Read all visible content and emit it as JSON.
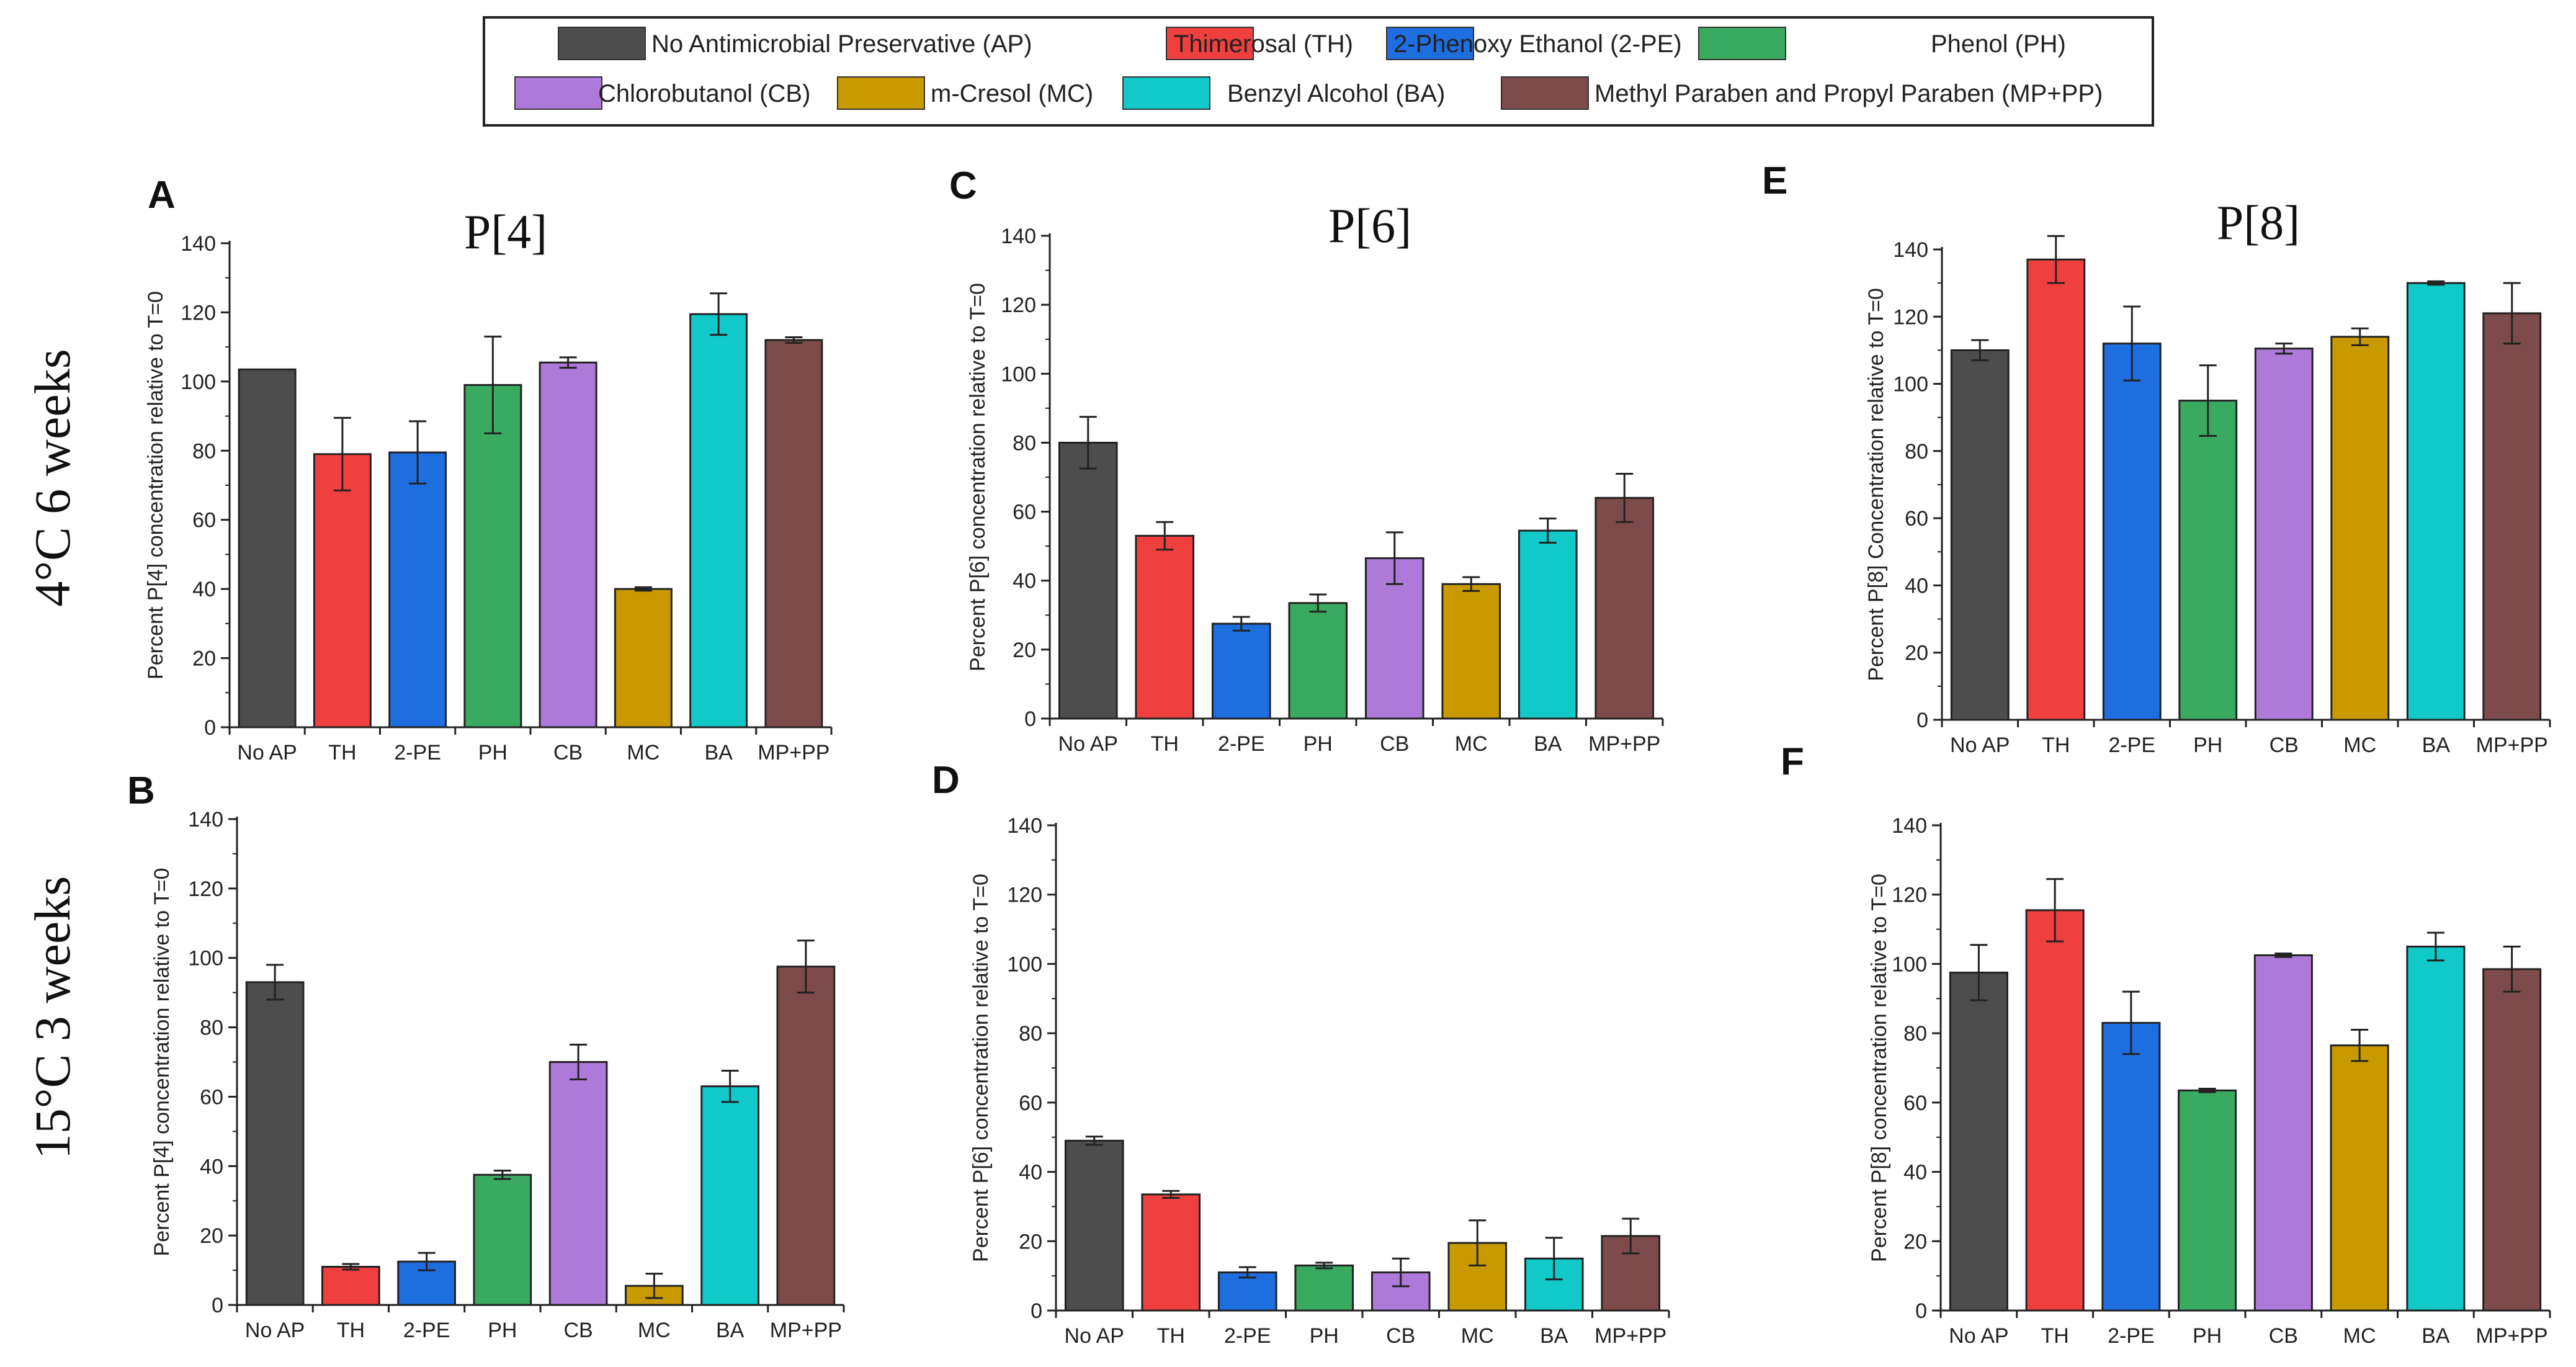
{
  "legend": {
    "items": [
      {
        "label": "No Antimicrobial Preservative (AP)",
        "color": "#4d4d4d"
      },
      {
        "label": "Thimerosal (TH)",
        "color": "#ef3f3f"
      },
      {
        "label": "2-Phenoxy Ethanol (2-PE)",
        "color": "#1e6ee0"
      },
      {
        "label": "Phenol (PH)",
        "color": "#3aaa61"
      },
      {
        "label": "Chlorobutanol (CB)",
        "color": "#ae7ad9"
      },
      {
        "label": "m-Cresol (MC)",
        "color": "#c99a00"
      },
      {
        "label": "Benzyl Alcohol (BA)",
        "color": "#12c9c9"
      },
      {
        "label": "Methyl Paraben and Propyl Paraben (MP+PP)",
        "color": "#7d4b4b"
      }
    ]
  },
  "row_labels": [
    "4°C 6 weeks",
    "15°C 3 weeks"
  ],
  "chart_data": [
    {
      "type": "bar",
      "panel": "A",
      "title": "P[4]",
      "ylabel": "Percent P[4] concentration relative to T=0",
      "xlabel": "",
      "categories": [
        "No AP",
        "TH",
        "2-PE",
        "PH",
        "CB",
        "MC",
        "BA",
        "MP+PP"
      ],
      "values": [
        103.5,
        79,
        79.5,
        99,
        105.5,
        40,
        119.5,
        112
      ],
      "errors": [
        0,
        10.5,
        9,
        14,
        1.5,
        0.5,
        6,
        0.8
      ],
      "ylim": [
        0,
        140
      ],
      "yticks": [
        "0",
        "20",
        "40",
        "60",
        "80",
        "100",
        "120",
        "140"
      ]
    },
    {
      "type": "bar",
      "panel": "B",
      "title": "",
      "ylabel": "Percent P[4] concentration relative to T=0",
      "xlabel": "",
      "categories": [
        "No AP",
        "TH",
        "2-PE",
        "PH",
        "CB",
        "MC",
        "BA",
        "MP+PP"
      ],
      "values": [
        93,
        11,
        12.5,
        37.5,
        70,
        5.5,
        63,
        97.5
      ],
      "errors": [
        5,
        0.8,
        2.5,
        1.2,
        5,
        3.5,
        4.5,
        7.5
      ],
      "ylim": [
        0,
        140
      ],
      "yticks": [
        "0",
        "20",
        "40",
        "60",
        "80",
        "100",
        "120",
        "140"
      ]
    },
    {
      "type": "bar",
      "panel": "C",
      "title": "P[6]",
      "ylabel": "Percent P[6] concentration relative to T=0",
      "xlabel": "",
      "categories": [
        "No AP",
        "TH",
        "2-PE",
        "PH",
        "CB",
        "MC",
        "BA",
        "MP+PP"
      ],
      "values": [
        80,
        53,
        27.5,
        33.5,
        46.5,
        39,
        54.5,
        64
      ],
      "errors": [
        7.5,
        4,
        2,
        2.5,
        7.5,
        2,
        3.5,
        7
      ],
      "ylim": [
        0,
        140
      ],
      "yticks": [
        "0",
        "20",
        "40",
        "60",
        "80",
        "100",
        "120",
        "140"
      ]
    },
    {
      "type": "bar",
      "panel": "D",
      "title": "",
      "ylabel": "Percent P[6] concentration relative to T=0",
      "xlabel": "",
      "categories": [
        "No AP",
        "TH",
        "2-PE",
        "PH",
        "CB",
        "MC",
        "BA",
        "MP+PP"
      ],
      "values": [
        49,
        33.5,
        11,
        13,
        11,
        19.5,
        15,
        21.5
      ],
      "errors": [
        1.2,
        1,
        1.5,
        0.8,
        4,
        6.5,
        6,
        5
      ],
      "ylim": [
        0,
        140
      ],
      "yticks": [
        "0",
        "20",
        "40",
        "60",
        "80",
        "100",
        "120",
        "140"
      ]
    },
    {
      "type": "bar",
      "panel": "E",
      "title": "P[8]",
      "ylabel": "Percent P[8]  Concentration relative to T=0",
      "xlabel": "",
      "categories": [
        "No AP",
        "TH",
        "2-PE",
        "PH",
        "CB",
        "MC",
        "BA",
        "MP+PP"
      ],
      "values": [
        110,
        137,
        112,
        95,
        110.5,
        114,
        130,
        121
      ],
      "errors": [
        3,
        7,
        11,
        10.5,
        1.5,
        2.5,
        0.5,
        9
      ],
      "ylim": [
        0,
        140
      ],
      "yticks": [
        "0",
        "20",
        "40",
        "60",
        "80",
        "100",
        "120",
        "140"
      ]
    },
    {
      "type": "bar",
      "panel": "F",
      "title": "",
      "ylabel": "Percent P[8] concentration relative to T=0",
      "xlabel": "",
      "categories": [
        "No AP",
        "TH",
        "2-PE",
        "PH",
        "CB",
        "MC",
        "BA",
        "MP+PP"
      ],
      "values": [
        97.5,
        115.5,
        83,
        63.5,
        102.5,
        76.5,
        105,
        98.5
      ],
      "errors": [
        8,
        9,
        9,
        0.5,
        0.5,
        4.5,
        4,
        6.5
      ],
      "ylim": [
        0,
        140
      ],
      "yticks": [
        "0",
        "20",
        "40",
        "60",
        "80",
        "100",
        "120",
        "140"
      ]
    }
  ]
}
